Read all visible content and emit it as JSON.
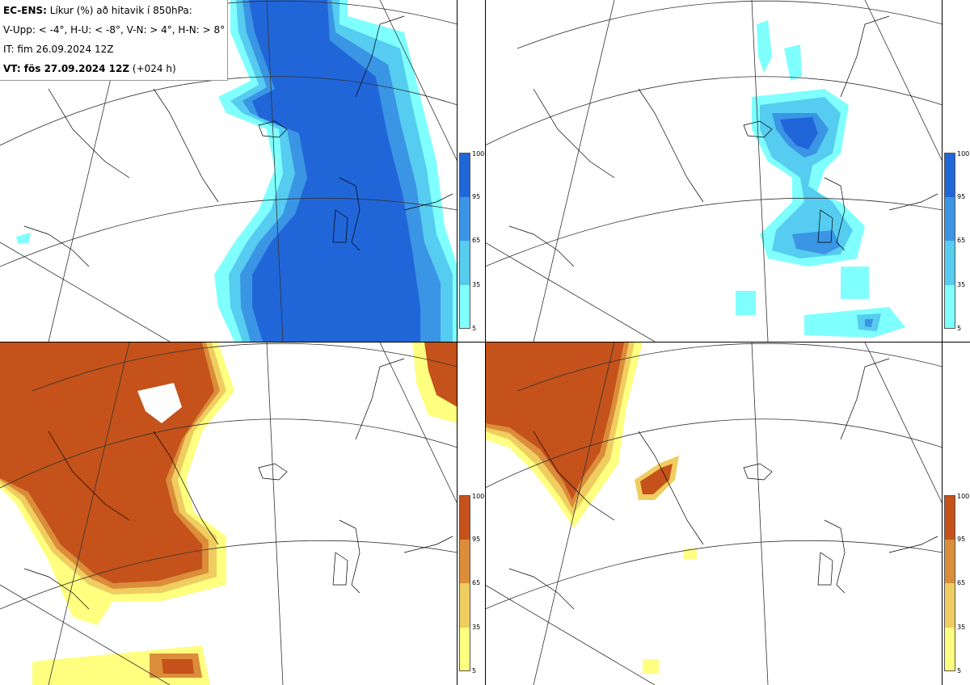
{
  "legend": {
    "line1_bold": "EC-ENS:",
    "line1_rest": " Líkur (%) að hitavik í 850hPa:",
    "line2": "V-Upp: < -4°, H-U: < -8°, V-N: > 4°, H-N: > 8°",
    "line3": "IT: fim 26.09.2024 12Z",
    "line4_bold": "VT: fös 27.09.2024 12Z",
    "line4_rest": " (+024 h)"
  },
  "panels": [
    {
      "name": "cold-4",
      "scheme": "blue"
    },
    {
      "name": "cold-8",
      "scheme": "blue"
    },
    {
      "name": "warm-4",
      "scheme": "orange"
    },
    {
      "name": "warm-8",
      "scheme": "orange"
    }
  ],
  "colorbar_ticks": [
    "100",
    "95",
    "65",
    "35",
    "5"
  ],
  "colors": {
    "blue": [
      "#80ffff",
      "#55ccf0",
      "#3a95e5",
      "#2166d8"
    ],
    "orange": [
      "#ffff80",
      "#f0cd60",
      "#db8d3a",
      "#c4521a"
    ]
  }
}
